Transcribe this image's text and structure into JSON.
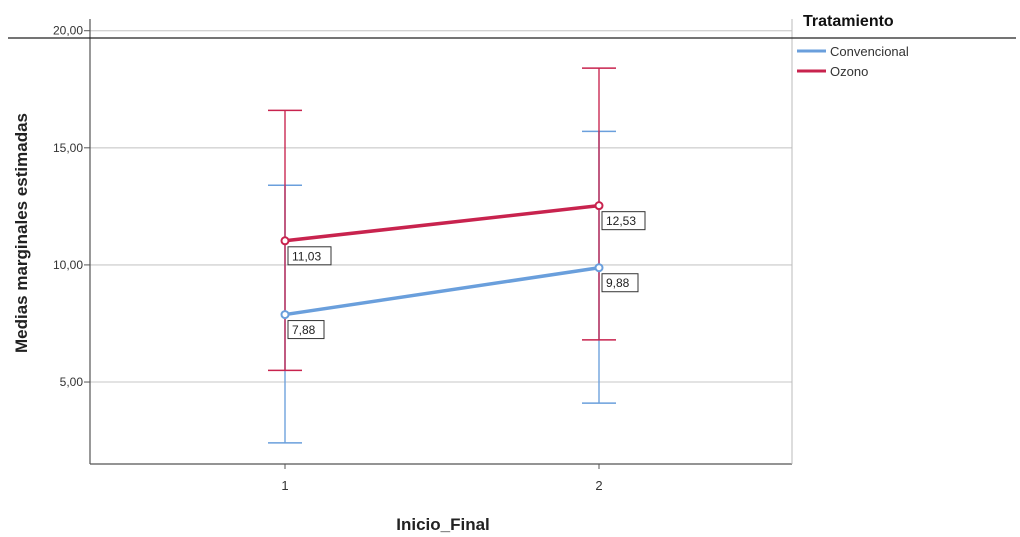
{
  "chart_data": {
    "type": "line",
    "xlabel": "Inicio_Final",
    "ylabel": "Medias marginales estimadas",
    "categories": [
      "1",
      "2"
    ],
    "ylim": [
      1.5,
      20.5
    ],
    "yticks": [
      "5,00",
      "10,00",
      "15,00",
      "20,00"
    ],
    "ytick_values": [
      5,
      10,
      15,
      20
    ],
    "grid": true,
    "legend": {
      "title": "Tratamiento",
      "position": "top-right"
    },
    "series": [
      {
        "name": "Convencional",
        "color": "#6a9fdc",
        "values": [
          7.88,
          9.88
        ],
        "labels": [
          "7,88",
          "9,88"
        ],
        "error_low": [
          2.4,
          4.1
        ],
        "error_high": [
          13.4,
          15.7
        ]
      },
      {
        "name": "Ozono",
        "color": "#c8234e",
        "values": [
          11.03,
          12.53
        ],
        "labels": [
          "11,03",
          "12,53"
        ],
        "error_low": [
          5.5,
          6.8
        ],
        "error_high": [
          16.6,
          18.4
        ]
      }
    ]
  }
}
